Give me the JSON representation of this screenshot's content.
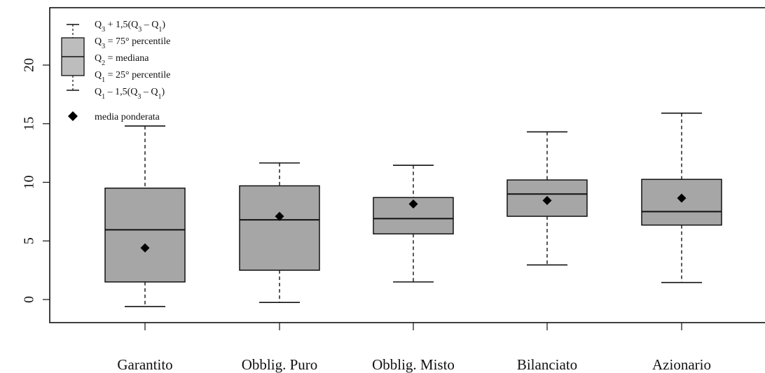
{
  "chart_data": {
    "type": "boxplot",
    "categories": [
      "Garantito",
      "Obblig. Puro",
      "Obblig. Misto",
      "Bilanciato",
      "Azionario"
    ],
    "boxes": [
      {
        "category": "Garantito",
        "whisker_low": -0.6,
        "q1": 1.5,
        "median": 5.95,
        "q3": 9.5,
        "whisker_high": 14.8,
        "weighted_mean": 4.4
      },
      {
        "category": "Obblig. Puro",
        "whisker_low": -0.25,
        "q1": 2.5,
        "median": 6.8,
        "q3": 9.7,
        "whisker_high": 11.65,
        "weighted_mean": 7.1
      },
      {
        "category": "Obblig. Misto",
        "whisker_low": 1.5,
        "q1": 5.6,
        "median": 6.9,
        "q3": 8.7,
        "whisker_high": 11.45,
        "weighted_mean": 8.15
      },
      {
        "category": "Bilanciato",
        "whisker_low": 2.95,
        "q1": 7.1,
        "median": 9.0,
        "q3": 10.2,
        "whisker_high": 14.3,
        "weighted_mean": 8.45
      },
      {
        "category": "Azionario",
        "whisker_low": 1.45,
        "q1": 6.35,
        "median": 7.5,
        "q3": 10.25,
        "whisker_high": 15.9,
        "weighted_mean": 8.65
      }
    ],
    "y_ticks": [
      "0",
      "5",
      "10",
      "15",
      "20"
    ],
    "ylim": [
      -2,
      25
    ],
    "grid": false,
    "legend_position": "top-left",
    "colors": {
      "box_fill": "#a6a6a6",
      "legend_box_fill": "#bdbdbd",
      "line": "#111111",
      "mean_marker": "#000000"
    },
    "legend": {
      "upper_whisker": [
        "Q",
        "3",
        " + 1,5(Q",
        "3",
        " – Q",
        "1",
        ")"
      ],
      "q3": [
        "Q",
        "3",
        " = 75° percentile"
      ],
      "median": [
        "Q",
        "2",
        " = mediana"
      ],
      "q1": [
        "Q",
        "1",
        " = 25° percentile"
      ],
      "lower_whisker": [
        "Q",
        "1",
        " – 1,5(Q",
        "3",
        " – Q",
        "1",
        ")"
      ],
      "mean": "media ponderata"
    }
  }
}
